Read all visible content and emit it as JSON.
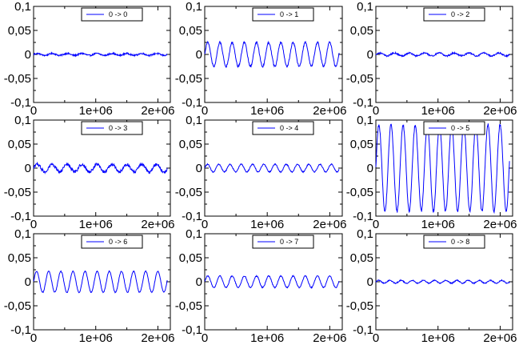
{
  "figure": {
    "background": "#ffffff",
    "line_color": "#0000ff",
    "frame_color": "#000000"
  },
  "chart_data": [
    {
      "type": "line",
      "legend": "0 -> 0",
      "xlim": [
        0,
        2200000
      ],
      "ylim": [
        -0.1,
        0.1
      ],
      "xticks": [
        "0",
        "1e+06",
        "2e+06"
      ],
      "yticks": [
        "0,1",
        "0,05",
        "0",
        "-0,05",
        "-0,1"
      ],
      "grid": false,
      "legend_position": "top-center",
      "series": [
        {
          "name": "0 -> 0",
          "amplitude": 0.002,
          "cycles": 9,
          "period_x": 240000,
          "offset": 0,
          "noise": 0.0015,
          "x_start": 0,
          "x_end": 2150000
        }
      ]
    },
    {
      "type": "line",
      "legend": "0 -> 1",
      "xlim": [
        0,
        2200000
      ],
      "ylim": [
        -0.1,
        0.1
      ],
      "xticks": [
        "0",
        "1e+06",
        "2e+06"
      ],
      "yticks": [
        "0,1",
        "0,05",
        "0",
        "-0,05",
        "-0,1"
      ],
      "grid": false,
      "legend_position": "top-center",
      "series": [
        {
          "name": "0 -> 1",
          "amplitude": 0.025,
          "cycles": 11,
          "period_x": 195000,
          "offset": 0,
          "noise": 0.002,
          "x_start": 0,
          "x_end": 2150000
        }
      ]
    },
    {
      "type": "line",
      "legend": "0 -> 2",
      "xlim": [
        0,
        2200000
      ],
      "ylim": [
        -0.1,
        0.1
      ],
      "xticks": [
        "0",
        "1e+06",
        "2e+06"
      ],
      "yticks": [
        "0,1",
        "0,05",
        "0",
        "-0,05",
        "-0,1"
      ],
      "grid": false,
      "legend_position": "top-center",
      "series": [
        {
          "name": "0 -> 2",
          "amplitude": 0.003,
          "cycles": 9,
          "period_x": 240000,
          "offset": 0,
          "noise": 0.0015,
          "x_start": 0,
          "x_end": 2150000
        }
      ]
    },
    {
      "type": "line",
      "legend": "0 -> 3",
      "xlim": [
        0,
        2200000
      ],
      "ylim": [
        -0.1,
        0.1
      ],
      "xticks": [
        "0",
        "1e+06",
        "2e+06"
      ],
      "yticks": [
        "0,1",
        "0,05",
        "0",
        "-0,05",
        "-0,1"
      ],
      "grid": false,
      "legend_position": "top-center",
      "series": [
        {
          "name": "0 -> 3",
          "amplitude": 0.008,
          "cycles": 9,
          "period_x": 240000,
          "offset": 0,
          "noise": 0.003,
          "x_start": 0,
          "x_end": 2150000
        }
      ]
    },
    {
      "type": "line",
      "legend": "0 -> 4",
      "xlim": [
        0,
        2200000
      ],
      "ylim": [
        -0.1,
        0.1
      ],
      "xticks": [
        "0",
        "1e+06",
        "2e+06"
      ],
      "yticks": [
        "0,1",
        "0,05",
        "0",
        "-0,05",
        "-0,1"
      ],
      "grid": false,
      "legend_position": "top-center",
      "series": [
        {
          "name": "0 -> 4",
          "amplitude": 0.008,
          "cycles": 12,
          "period_x": 180000,
          "offset": 0,
          "noise": 0.001,
          "x_start": 0,
          "x_end": 2150000
        }
      ]
    },
    {
      "type": "line",
      "legend": "0 -> 5",
      "xlim": [
        0,
        2200000
      ],
      "ylim": [
        -0.1,
        0.1
      ],
      "xticks": [
        "0",
        "1e+06",
        "2e+06"
      ],
      "yticks": [
        "0,1",
        "0,05",
        "0",
        "-0,05",
        "-0,1"
      ],
      "grid": false,
      "legend_position": "top-center",
      "series": [
        {
          "name": "0 -> 5",
          "amplitude": 0.09,
          "cycles": 11,
          "period_x": 195000,
          "offset": 0,
          "noise": 0.003,
          "x_start": 0,
          "x_end": 2150000
        }
      ]
    },
    {
      "type": "line",
      "legend": "0 -> 6",
      "xlim": [
        0,
        2200000
      ],
      "ylim": [
        -0.1,
        0.1
      ],
      "xticks": [
        "0",
        "1e+06",
        "2e+06"
      ],
      "yticks": [
        "0,1",
        "0,05",
        "0",
        "-0,05",
        "-0,1"
      ],
      "grid": false,
      "legend_position": "top-center",
      "series": [
        {
          "name": "0 -> 6",
          "amplitude": 0.022,
          "cycles": 11,
          "period_x": 195000,
          "offset": 0,
          "noise": 0.001,
          "x_start": 0,
          "x_end": 2150000
        }
      ]
    },
    {
      "type": "line",
      "legend": "0 -> 7",
      "xlim": [
        0,
        2200000
      ],
      "ylim": [
        -0.1,
        0.1
      ],
      "xticks": [
        "0",
        "1e+06",
        "2e+06"
      ],
      "yticks": [
        "0,1",
        "0,05",
        "0",
        "-0,05",
        "-0,1"
      ],
      "grid": false,
      "legend_position": "top-center",
      "series": [
        {
          "name": "0 -> 7",
          "amplitude": 0.012,
          "cycles": 11,
          "period_x": 195000,
          "offset": 0,
          "noise": 0.001,
          "x_start": 0,
          "x_end": 2150000
        }
      ]
    },
    {
      "type": "line",
      "legend": "0 -> 8",
      "xlim": [
        0,
        2200000
      ],
      "ylim": [
        -0.1,
        0.1
      ],
      "xticks": [
        "0",
        "1e+06",
        "2e+06"
      ],
      "yticks": [
        "0,1",
        "0,05",
        "0",
        "-0,05",
        "-0,1"
      ],
      "grid": false,
      "legend_position": "top-center",
      "series": [
        {
          "name": "0 -> 8",
          "amplitude": 0.003,
          "cycles": 12,
          "period_x": 180000,
          "offset": 0,
          "noise": 0.001,
          "x_start": 0,
          "x_end": 2150000
        }
      ]
    }
  ]
}
